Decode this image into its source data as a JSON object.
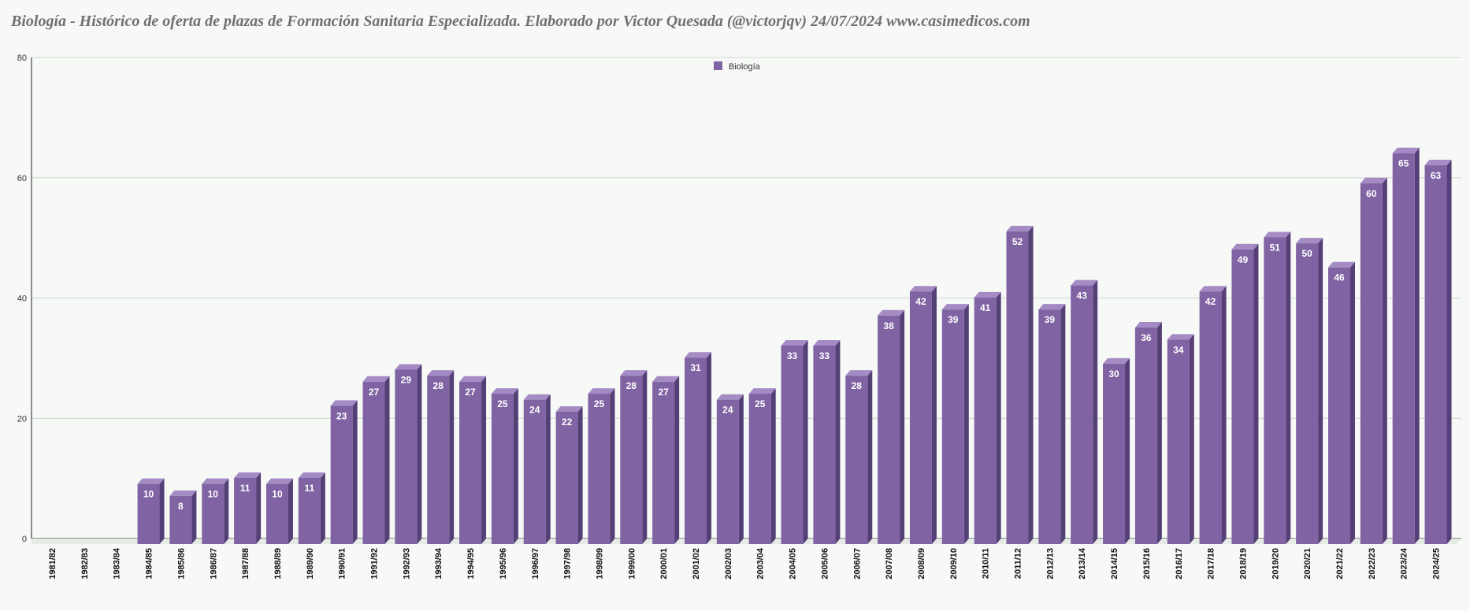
{
  "colors": {
    "bar_front": "#7f63a3",
    "bar_side": "#553f77",
    "bar_top": "#a48bc4",
    "grid": "#cfd6cf",
    "background": "#f7f9f7"
  },
  "chart_data": {
    "type": "bar",
    "title": "Biología - Histórico de oferta de plazas de Formación Sanitaria Especializada. Elaborado por Victor Quesada (@victorjqv)  24/07/2024 www.casimedicos.com",
    "xlabel": "",
    "ylabel": "",
    "ylim": [
      0,
      80
    ],
    "yticks": [
      0,
      20,
      40,
      60,
      80
    ],
    "grid": true,
    "legend_position": "top-center",
    "categories": [
      "1981/82",
      "1982/83",
      "1983/84",
      "1984/85",
      "1985/86",
      "1986/87",
      "1987/88",
      "1988/89",
      "1989/90",
      "1990/91",
      "1991/92",
      "1992/93",
      "1993/94",
      "1994/95",
      "1995/96",
      "1996/97",
      "1997/98",
      "1998/99",
      "1999/00",
      "2000/01",
      "2001/02",
      "2002/03",
      "2003/04",
      "2004/05",
      "2005/06",
      "2006/07",
      "2007/08",
      "2008/09",
      "2009/10",
      "2010/11",
      "2011/12",
      "2012/13",
      "2013/14",
      "2014/15",
      "2015/16",
      "2016/17",
      "2017/18",
      "2018/19",
      "2019/20",
      "2020/21",
      "2021/22",
      "2022/23",
      "2023/24",
      "2024/25"
    ],
    "series": [
      {
        "name": "Biología",
        "values": [
          null,
          null,
          null,
          10,
          8,
          10,
          11,
          10,
          11,
          23,
          27,
          29,
          28,
          27,
          25,
          24,
          22,
          25,
          28,
          27,
          31,
          24,
          25,
          33,
          33,
          28,
          38,
          42,
          39,
          41,
          52,
          39,
          43,
          30,
          36,
          34,
          42,
          49,
          51,
          50,
          46,
          60,
          65,
          63
        ]
      }
    ]
  }
}
